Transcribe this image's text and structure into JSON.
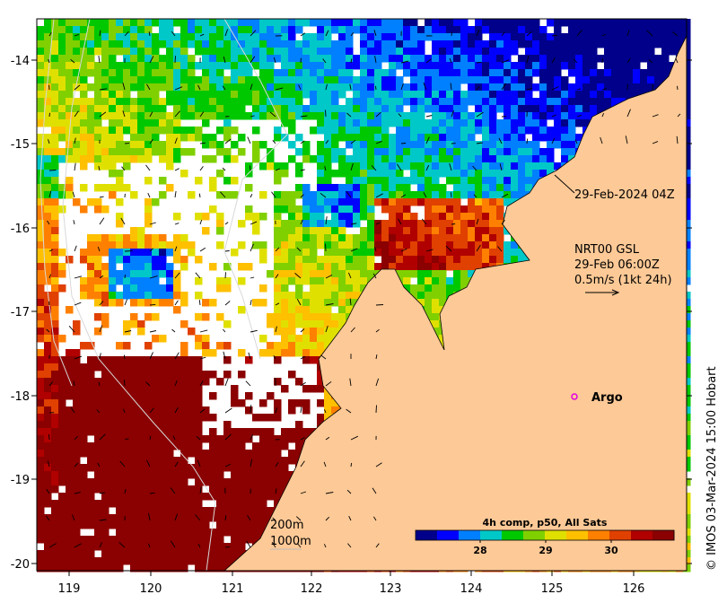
{
  "map": {
    "lon_range": [
      118.6,
      126.8
    ],
    "lat_range": [
      -20.1,
      -13.5
    ],
    "lon_ticks": [
      "119",
      "120",
      "121",
      "122",
      "123",
      "124",
      "125",
      "126"
    ],
    "lat_ticks": [
      "-14",
      "-15",
      "-16",
      "-17",
      "-18",
      "-19",
      "-20"
    ],
    "land_color": "#fdc996",
    "water_color": "#ffffff"
  },
  "annotations": {
    "date_label": "29-Feb-2024 04Z",
    "current_source": "NRT00 GSL",
    "current_time": "29-Feb 06:00Z",
    "current_scale": "0.5m/s (1kt 24h)",
    "argo_label": "Argo",
    "contour_200": "200m",
    "contour_1000": "1000m",
    "credit": "© IMOS 03-Mar-2024 15:00 Hobart"
  },
  "colorbar": {
    "title": "4h comp, p50, All Sats",
    "ticks": [
      "28",
      "29",
      "30"
    ],
    "colors": [
      "#00008b",
      "#0000ff",
      "#0080ff",
      "#00c8c8",
      "#00c800",
      "#80d000",
      "#e0e000",
      "#ffc000",
      "#ff8000",
      "#e04000",
      "#b00000",
      "#8b0000"
    ]
  }
}
